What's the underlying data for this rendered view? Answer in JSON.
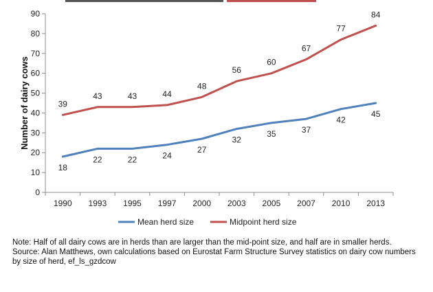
{
  "chart_data": {
    "type": "line",
    "title": "",
    "xlabel": "",
    "ylabel": "Number of dairy cows",
    "ylim": [
      0,
      90
    ],
    "yticks": [
      0,
      10,
      20,
      30,
      40,
      50,
      60,
      70,
      80,
      90
    ],
    "grid": false,
    "legend": "bottom",
    "categories": [
      "1990",
      "1993",
      "1995",
      "1997",
      "2000",
      "2003",
      "2005",
      "2007",
      "2010",
      "2013"
    ],
    "series": [
      {
        "name": "Mean herd size",
        "color": "#4f81bd",
        "values": [
          18,
          22,
          22,
          24,
          27,
          32,
          35,
          37,
          42,
          45
        ]
      },
      {
        "name": "Midpoint herd size",
        "color": "#c0504d",
        "values": [
          39,
          43,
          43,
          44,
          48,
          56,
          60,
          67,
          77,
          84
        ]
      }
    ]
  },
  "notes": {
    "note": "Note:  Half of all dairy cows are in herds than are larger than the mid-point size, and half are in smaller herds.",
    "source": "Source:  Alan Matthews, own calculations based on Eurostat Farm Structure Survey statistics on dairy cow numbers by size of herd, ef_ls_gzdcow"
  }
}
